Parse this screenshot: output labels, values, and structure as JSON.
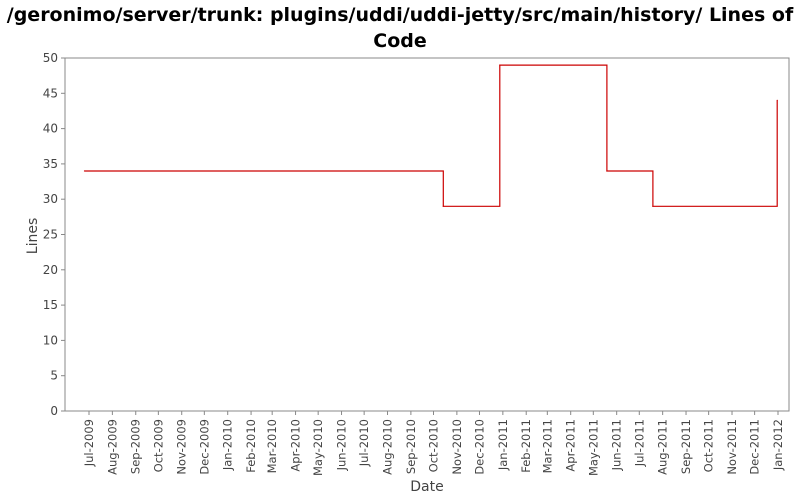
{
  "chart_data": {
    "type": "line",
    "title": "/geronimo/server/trunk: plugins/uddi/uddi-jetty/src/main/history/ Lines of Code",
    "xlabel": "Date",
    "ylabel": "Lines",
    "ylim": [
      0,
      50
    ],
    "yticks": [
      0,
      5,
      10,
      15,
      20,
      25,
      30,
      35,
      40,
      45,
      50
    ],
    "xticks": [
      "Jul-2009",
      "Aug-2009",
      "Sep-2009",
      "Oct-2009",
      "Nov-2009",
      "Dec-2009",
      "Jan-2010",
      "Feb-2010",
      "Mar-2010",
      "Apr-2010",
      "May-2010",
      "Jun-2010",
      "Jul-2010",
      "Aug-2010",
      "Sep-2010",
      "Oct-2010",
      "Nov-2010",
      "Dec-2010",
      "Jan-2011",
      "Feb-2011",
      "Mar-2011",
      "Apr-2011",
      "May-2011",
      "Jun-2011",
      "Jul-2011",
      "Aug-2011",
      "Sep-2011",
      "Oct-2011",
      "Nov-2011",
      "Dec-2011",
      "Jan-2012"
    ],
    "step": true,
    "grid": false,
    "legend": "none",
    "colors": {
      "line": "#cc0000",
      "axis": "#888888",
      "text": "#444444"
    },
    "series": [
      {
        "points": [
          [
            "2009-06-25",
            34
          ],
          [
            "2010-10-14",
            29
          ],
          [
            "2010-12-28",
            49
          ],
          [
            "2011-05-19",
            34
          ],
          [
            "2011-07-19",
            29
          ],
          [
            "2011-12-31",
            44
          ]
        ]
      }
    ]
  }
}
